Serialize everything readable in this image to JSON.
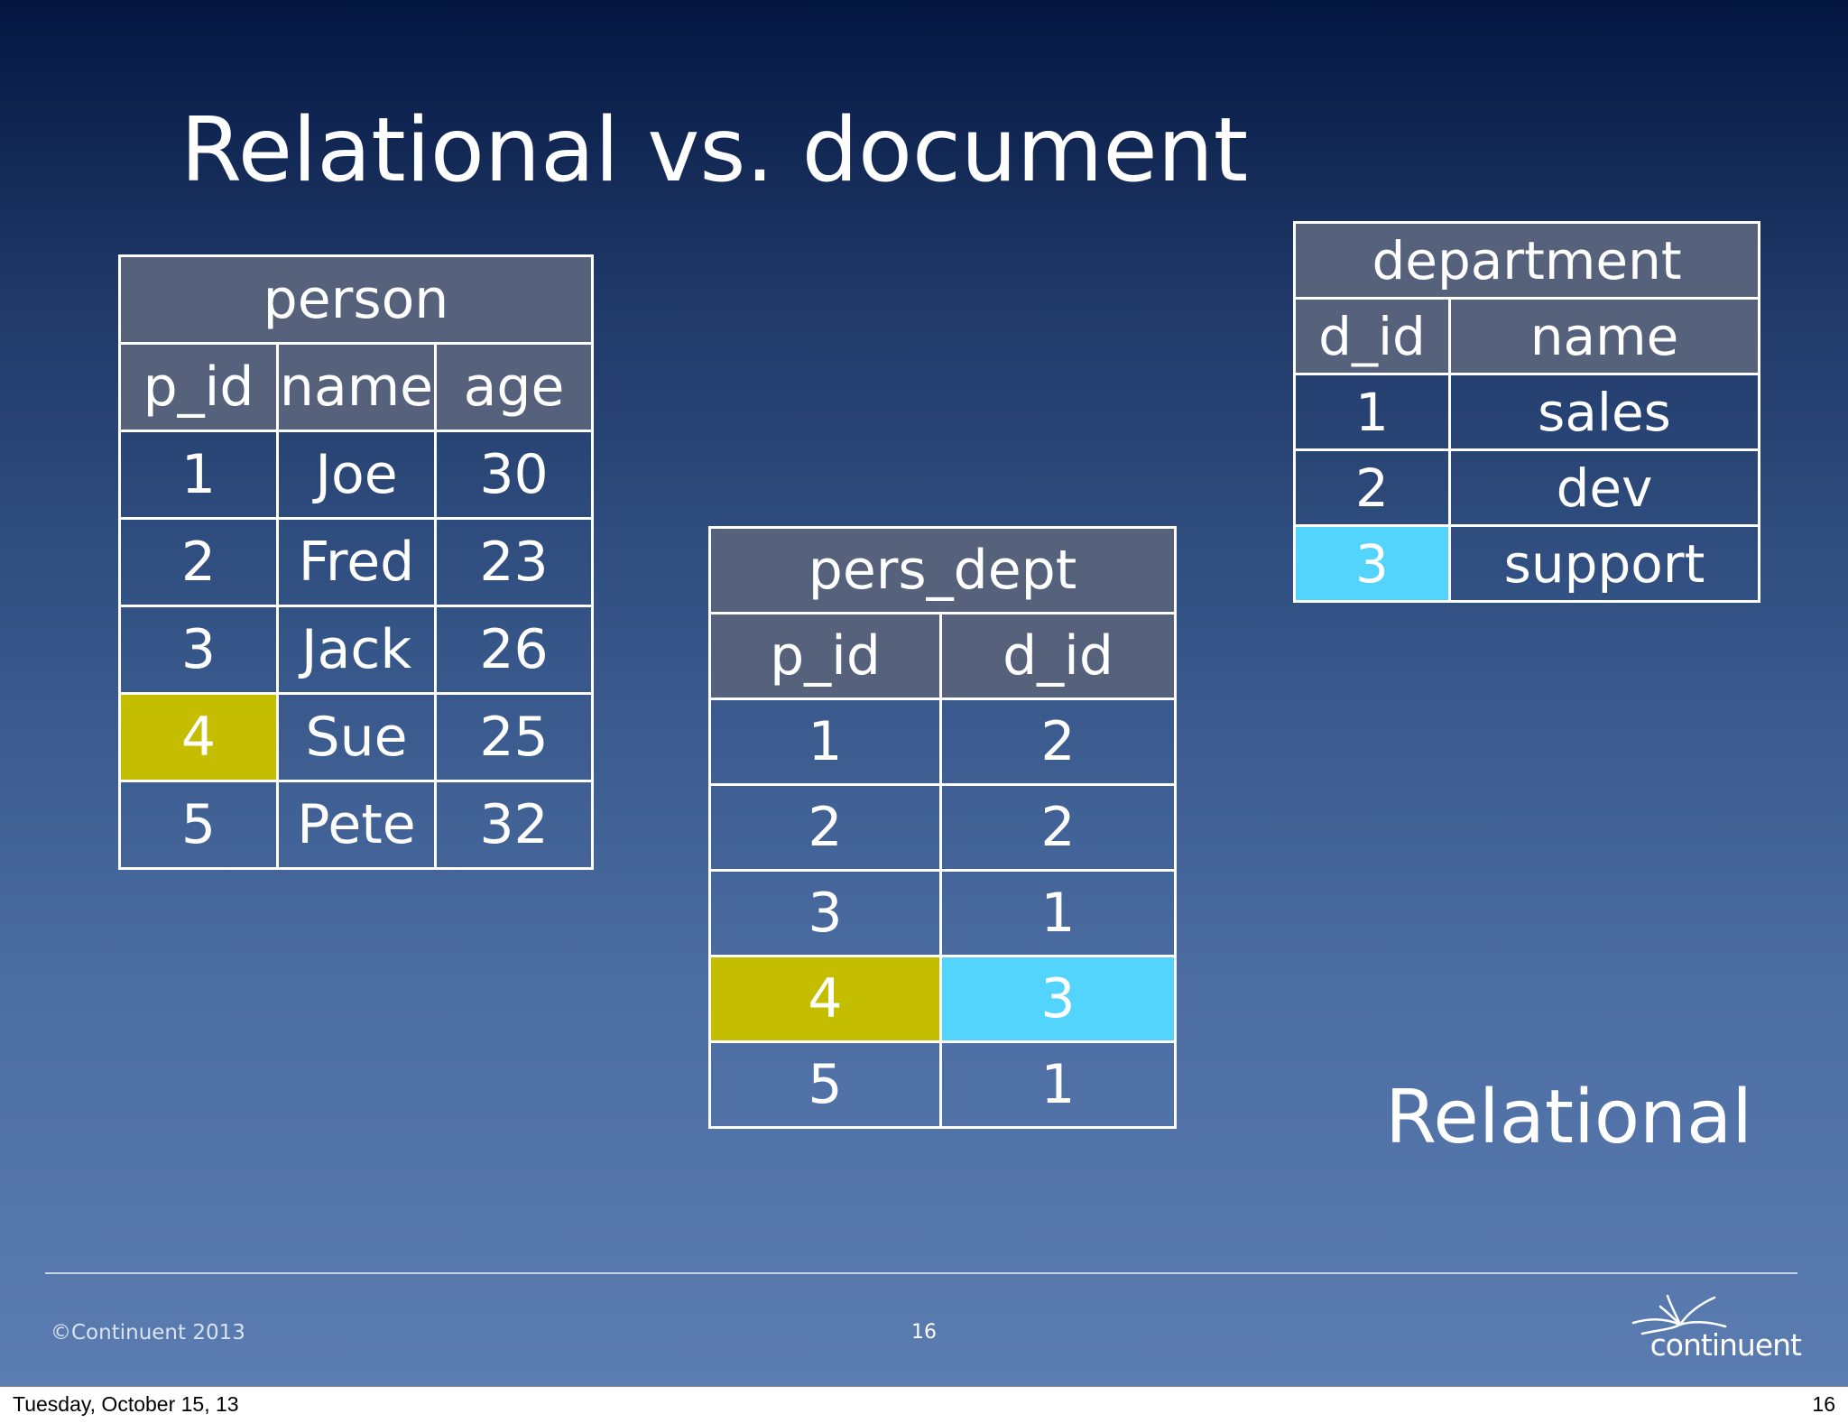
{
  "slide": {
    "title": "Relational vs. document",
    "caption": "Relational"
  },
  "person": {
    "title": "person",
    "columns": [
      "p_id",
      "name",
      "age"
    ],
    "rows": [
      [
        "1",
        "Joe",
        "30"
      ],
      [
        "2",
        "Fred",
        "23"
      ],
      [
        "3",
        "Jack",
        "26"
      ],
      [
        "4",
        "Sue",
        "25"
      ],
      [
        "5",
        "Pete",
        "32"
      ]
    ]
  },
  "pers_dept": {
    "title": "pers_dept",
    "columns": [
      "p_id",
      "d_id"
    ],
    "rows": [
      [
        "1",
        "2"
      ],
      [
        "2",
        "2"
      ],
      [
        "3",
        "1"
      ],
      [
        "4",
        "3"
      ],
      [
        "5",
        "1"
      ]
    ]
  },
  "department": {
    "title": "department",
    "columns": [
      "d_id",
      "name"
    ],
    "rows": [
      [
        "1",
        "sales"
      ],
      [
        "2",
        "dev"
      ],
      [
        "3",
        "support"
      ]
    ]
  },
  "highlight_colors": {
    "person_link": "#c4bd00",
    "department_link": "#52d4fc"
  },
  "footer": {
    "copyright": "©Continuent 2013",
    "slide_number": "16",
    "logo_text": "continuent"
  },
  "print_strip": {
    "date": "Tuesday, October 15, 13",
    "page": "16"
  }
}
